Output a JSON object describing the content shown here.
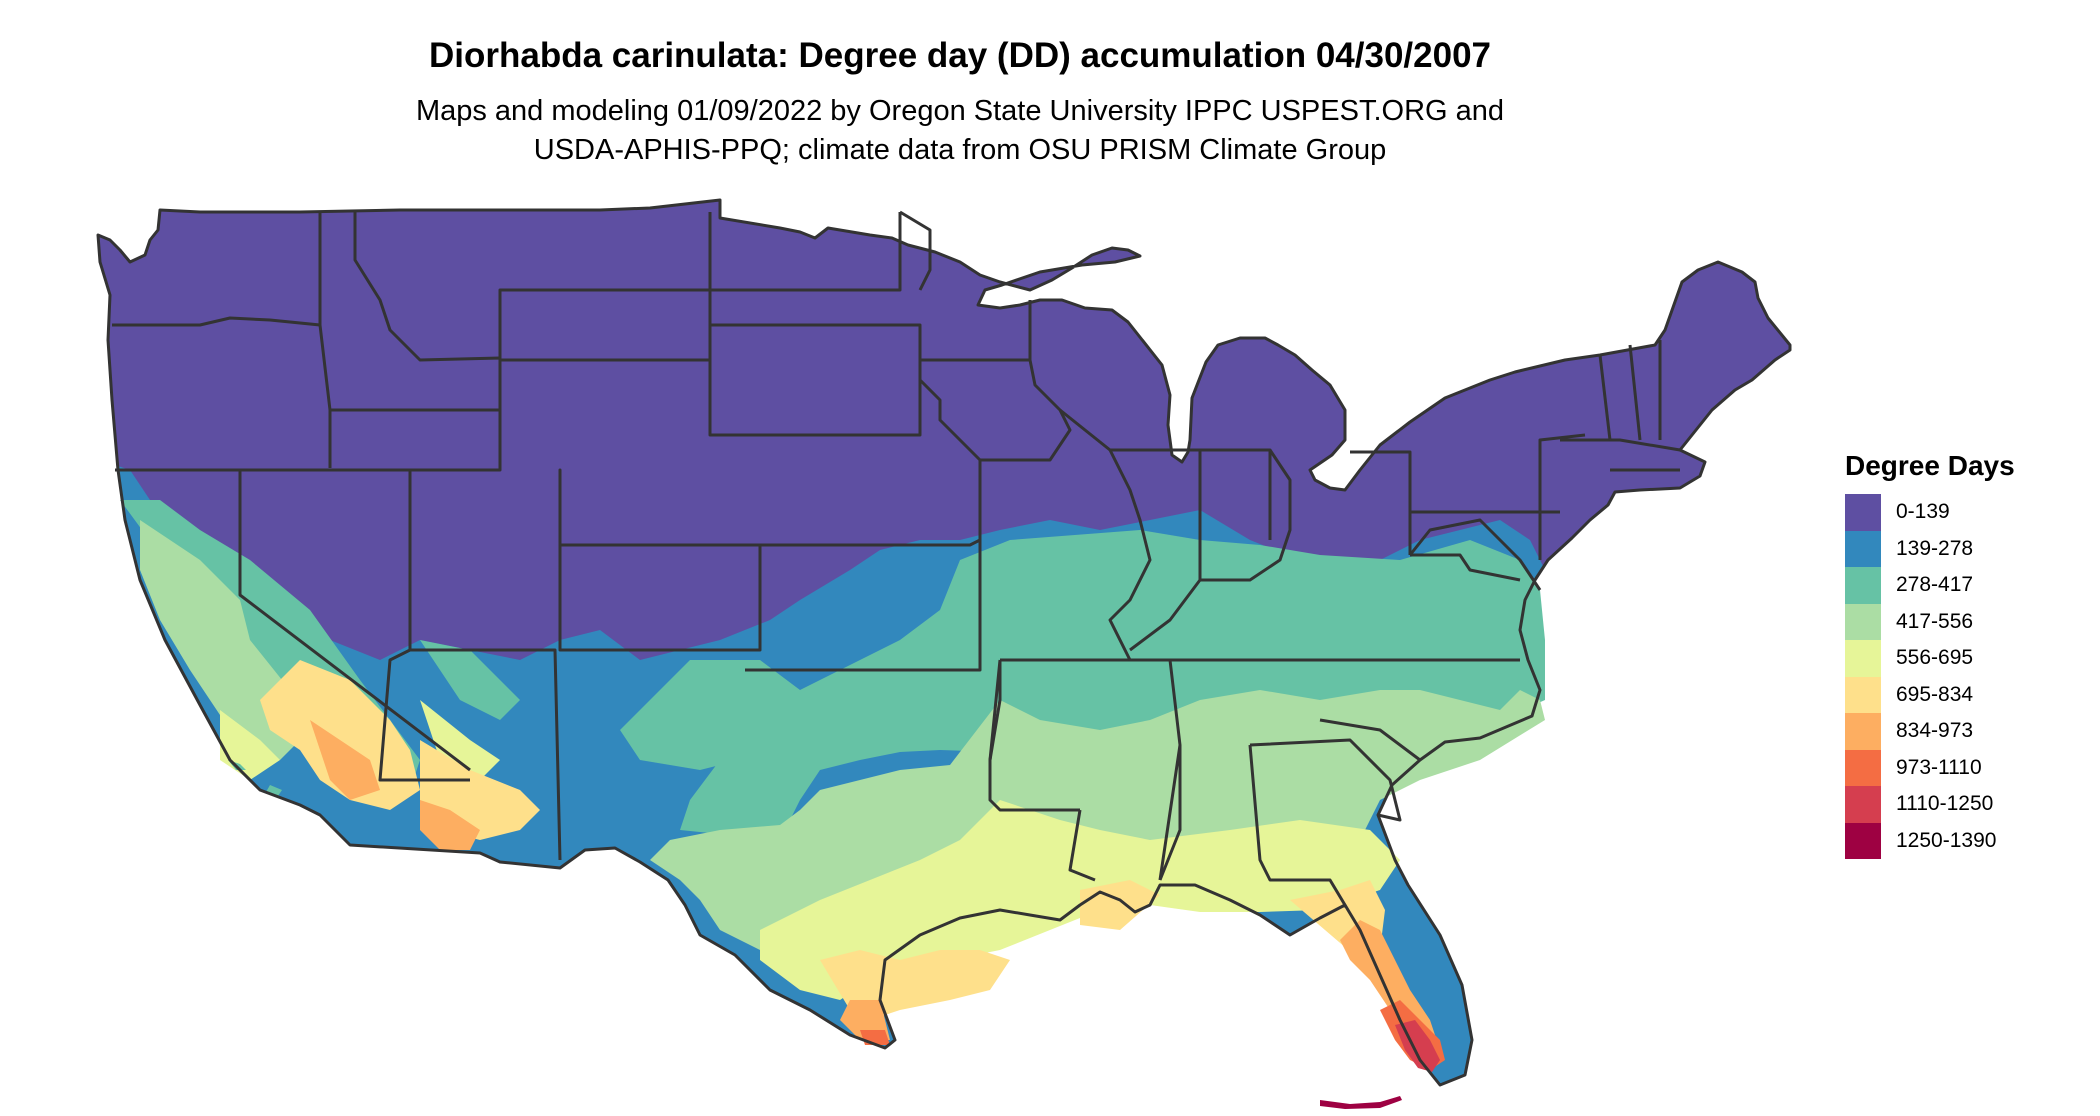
{
  "title": "Diorhabda carinulata: Degree day (DD) accumulation 04/30/2007",
  "subtitle_line1": "Maps and modeling 01/09/2022 by Oregon State University IPPC USPEST.ORG and",
  "subtitle_line2": "USDA-APHIS-PPQ; climate data from OSU PRISM Climate Group",
  "legend": {
    "title": "Degree Days",
    "items": [
      {
        "label": "0-139",
        "color": "#5E4FA2"
      },
      {
        "label": "139-278",
        "color": "#3288BD"
      },
      {
        "label": "278-417",
        "color": "#66C2A5"
      },
      {
        "label": "417-556",
        "color": "#ABDDA4"
      },
      {
        "label": "556-695",
        "color": "#E6F598"
      },
      {
        "label": "695-834",
        "color": "#FEE08B"
      },
      {
        "label": "834-973",
        "color": "#FDAE61"
      },
      {
        "label": "973-1110",
        "color": "#F46D43"
      },
      {
        "label": "1110-1250",
        "color": "#D53E4F"
      },
      {
        "label": "1250-1390",
        "color": "#9E0142"
      }
    ]
  },
  "map": {
    "region": "Contiguous United States",
    "border_color": "#333333"
  }
}
